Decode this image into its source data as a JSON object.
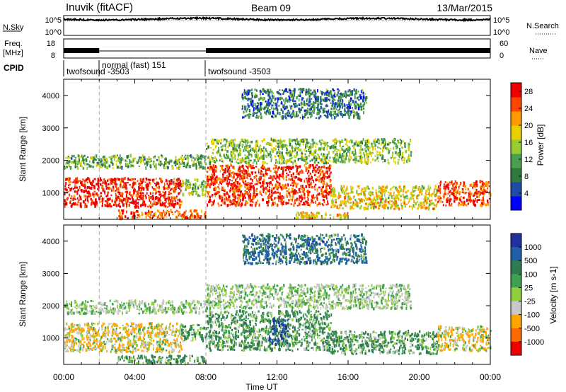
{
  "header": {
    "station": "Inuvik (fitACF)",
    "beam": "Beam 09",
    "date": "13/Mar/2015"
  },
  "status_panels": {
    "nsky_label": "N.Sky",
    "nsky_ticks": [
      "10^5",
      "10^0"
    ],
    "nsearch_label": "N.Search",
    "nsearch_ticks": [
      "10^5",
      "10^0"
    ],
    "freq_label": "Freq.",
    "freq_unit": "[MHz]",
    "freq_ticks": [
      "18",
      "8"
    ],
    "nave_label": "Nave",
    "nave_ticks": [
      "60",
      "0"
    ],
    "cpid_label": "CPID",
    "cpid_entries": [
      {
        "name": "twofsound -3503",
        "start_hour": 0
      },
      {
        "name": "normal (fast) 151",
        "start_hour": 2
      },
      {
        "name": "twofsound -3503",
        "start_hour": 8
      }
    ]
  },
  "chart_data": [
    {
      "type": "heatmap",
      "title": "",
      "parameter": "Power",
      "ylabel": "Slant Range [km]",
      "xlabel": "Time UT",
      "x_ticks": [
        "00:00",
        "04:00",
        "08:00",
        "12:00",
        "16:00",
        "20:00",
        "00:00"
      ],
      "xlim_hours": [
        0,
        24
      ],
      "y_ticks": [
        1000,
        2000,
        3000,
        4000
      ],
      "ylim": [
        180,
        4500
      ],
      "colorbar": {
        "label": "Power [dB]",
        "ticks": [
          4,
          8,
          12,
          16,
          20,
          24,
          28
        ],
        "range": [
          0,
          30
        ],
        "colors": [
          "#0000ff",
          "#1e4aa8",
          "#2f7a3e",
          "#4aa050",
          "#9acd32",
          "#e8d000",
          "#ff9a00",
          "#ff4400",
          "#ee0000"
        ]
      },
      "scatter_bands": [
        {
          "t0": 0.0,
          "t1": 6.6,
          "r0": 550,
          "r1": 1450,
          "level": 28
        },
        {
          "t0": 6.6,
          "t1": 8.0,
          "r0": 900,
          "r1": 1400,
          "level": 14
        },
        {
          "t0": 8.0,
          "t1": 15.0,
          "r0": 600,
          "r1": 1850,
          "level": 27
        },
        {
          "t0": 15.0,
          "t1": 21.0,
          "r0": 500,
          "r1": 1200,
          "level": 18
        },
        {
          "t0": 21.0,
          "t1": 24.0,
          "r0": 600,
          "r1": 1350,
          "level": 26
        },
        {
          "t0": 0.0,
          "t1": 8.0,
          "r0": 1750,
          "r1": 2150,
          "level": 12
        },
        {
          "t0": 8.0,
          "t1": 19.5,
          "r0": 1900,
          "r1": 2650,
          "level": 14
        },
        {
          "t0": 3.0,
          "t1": 8.0,
          "r0": 200,
          "r1": 450,
          "level": 24
        },
        {
          "t0": 13.0,
          "t1": 16.0,
          "r0": 200,
          "r1": 400,
          "level": 20
        },
        {
          "t0": 10.0,
          "t1": 17.0,
          "r0": 3300,
          "r1": 4200,
          "level": 8
        }
      ]
    },
    {
      "type": "heatmap",
      "title": "",
      "parameter": "Velocity",
      "ylabel": "Slant Range [km]",
      "xlabel": "Time UT",
      "x_ticks": [
        "00:00",
        "04:00",
        "08:00",
        "12:00",
        "16:00",
        "20:00",
        "00:00"
      ],
      "xlim_hours": [
        0,
        24
      ],
      "y_ticks": [
        1000,
        2000,
        3000,
        4000
      ],
      "ylim": [
        180,
        4500
      ],
      "colorbar": {
        "label": "Velocity [m s-1]",
        "ticks": [
          1000,
          500,
          100,
          25,
          -25,
          -100,
          -500,
          -1000
        ],
        "colors": [
          "#2030a0",
          "#1f5fa8",
          "#2f7a4e",
          "#3fa050",
          "#90d040",
          "#c8c8c8",
          "#ffa500",
          "#ff6a00",
          "#ee0000"
        ]
      },
      "scatter_bands": [
        {
          "t0": 0.0,
          "t1": 6.6,
          "r0": 550,
          "r1": 1450,
          "level": -100
        },
        {
          "t0": 6.6,
          "t1": 8.0,
          "r0": 900,
          "r1": 1400,
          "level": 100
        },
        {
          "t0": 8.0,
          "t1": 15.0,
          "r0": 600,
          "r1": 1850,
          "level": 100
        },
        {
          "t0": 11.5,
          "t1": 12.6,
          "r0": 800,
          "r1": 1600,
          "level": 1000
        },
        {
          "t0": 15.0,
          "t1": 21.0,
          "r0": 500,
          "r1": 1200,
          "level": 100
        },
        {
          "t0": 21.0,
          "t1": 24.0,
          "r0": 600,
          "r1": 1350,
          "level": -100
        },
        {
          "t0": 0.0,
          "t1": 8.0,
          "r0": 1750,
          "r1": 2150,
          "level": 0
        },
        {
          "t0": 8.0,
          "t1": 19.5,
          "r0": 1900,
          "r1": 2650,
          "level": 0
        },
        {
          "t0": 3.0,
          "t1": 8.0,
          "r0": 200,
          "r1": 450,
          "level": 100
        },
        {
          "t0": 10.0,
          "t1": 17.0,
          "r0": 3300,
          "r1": 4200,
          "level": 500
        }
      ]
    }
  ]
}
